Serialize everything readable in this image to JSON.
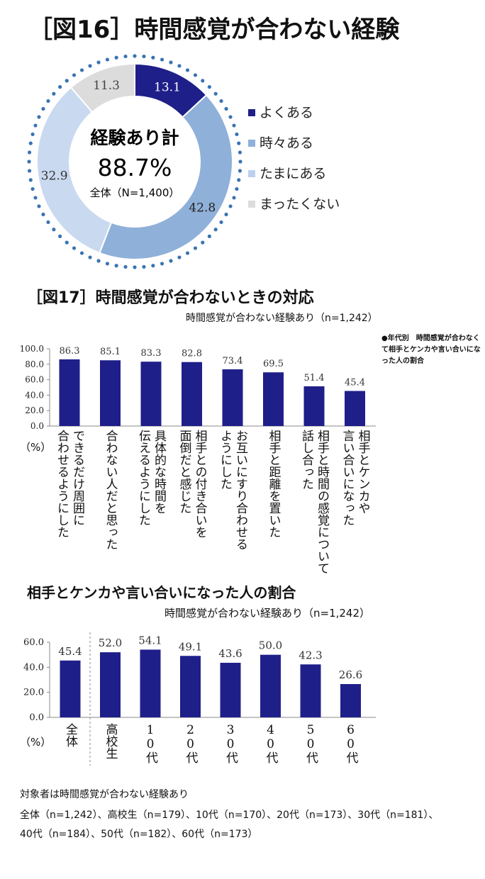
{
  "fig16": {
    "title": "［図16］時間感覚が合わない経験",
    "center_line1": "経験あり計",
    "center_line2": "88.7%",
    "center_line3": "全体（N=1,400）",
    "chart_data": {
      "type": "pie",
      "categories": [
        "よくある",
        "時々ある",
        "たまにある",
        "まったくない"
      ],
      "values": [
        13.1,
        42.8,
        32.9,
        11.3
      ],
      "value_labels": [
        "13.1",
        "42.8",
        "32.9",
        "11.3"
      ],
      "colors": [
        "#1f1f8a",
        "#8fb0d8",
        "#c9d9f0",
        "#dcdcdc"
      ],
      "legend_placement": "right",
      "donut": true
    }
  },
  "fig17": {
    "title": "［図17］時間感覚が合わないときの対応",
    "note": "時間感覚が合わない経験あり（n=1,242）",
    "unit": "（%）",
    "callout": "●年代別　時間感覚が合わなくて相手とケンカや言い合いになった人の割合",
    "chart_data": {
      "type": "bar",
      "categories": [
        "できるだけ周囲に\n合わせるようにした",
        "合わない人だと思った",
        "具体的な時間を\n伝えるようにした",
        "相手との付き合いを\n面倒だと感じた",
        "お互いにすり合わせる\nようにした",
        "相手と距離を置いた",
        "相手と時間の感覚について\n話し合った",
        "相手とケンカや\n言い合いになった"
      ],
      "values": [
        86.3,
        85.1,
        83.3,
        82.8,
        73.4,
        69.5,
        51.4,
        45.4
      ],
      "value_labels": [
        "86.3",
        "85.1",
        "83.3",
        "82.8",
        "73.4",
        "69.5",
        "51.4",
        "45.4"
      ],
      "yticks": [
        "100.0",
        "80.0",
        "60.0",
        "40.0",
        "20.0",
        "0.0"
      ],
      "ylim": [
        0,
        100
      ],
      "bar_color": "#1f1f8a",
      "grid": false
    }
  },
  "fig18": {
    "title": "相手とケンカや言い合いになった人の割合",
    "note": "時間感覚が合わない経験あり（n=1,242）",
    "unit": "（%）",
    "chart_data": {
      "type": "bar",
      "categories": [
        "全体",
        "高校生",
        "10代",
        "20代",
        "30代",
        "40代",
        "50代",
        "60代"
      ],
      "values": [
        45.4,
        52.0,
        54.1,
        49.1,
        43.6,
        50.0,
        42.3,
        26.6
      ],
      "value_labels": [
        "45.4",
        "52.0",
        "54.1",
        "49.1",
        "43.6",
        "50.0",
        "42.3",
        "26.6"
      ],
      "yticks": [
        "60.0",
        "40.0",
        "20.0",
        "0.0"
      ],
      "ylim": [
        0,
        60
      ],
      "bar_color": "#1f1f8a",
      "grid": false
    }
  },
  "footnote": {
    "line1": "対象者は時間感覚が合わない経験あり",
    "line2": "全体（n=1,242）、高校生（n=179）、10代（n=170）、20代（n=173）、30代（n=181）、",
    "line3": "40代（n=184）、50代（n=182）、60代（n=173）"
  }
}
